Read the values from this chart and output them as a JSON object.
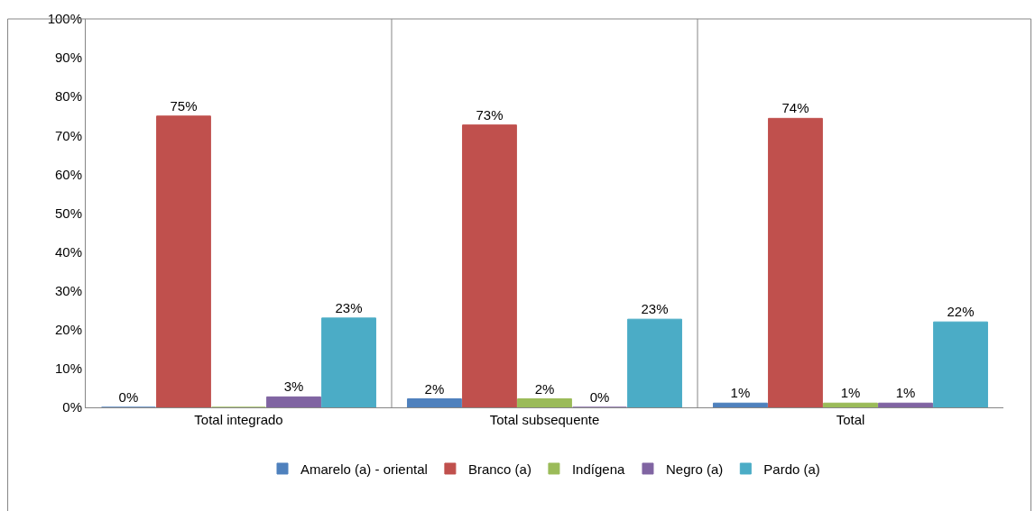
{
  "chart_data": {
    "type": "bar",
    "categories": [
      "Total integrado",
      "Total subsequente",
      "Total"
    ],
    "series": [
      {
        "name": "Amarelo (a) - oriental",
        "color": "#4f81bd",
        "values": [
          0,
          2.2,
          1.1
        ],
        "value_labels": [
          "0%",
          "2%",
          "1%"
        ]
      },
      {
        "name": "Branco (a)",
        "color": "#c0504d",
        "values": [
          75,
          72.7,
          74.4
        ],
        "value_labels": [
          "75%",
          "73%",
          "74%"
        ]
      },
      {
        "name": "Indígena",
        "color": "#9bbb59",
        "values": [
          0,
          2.2,
          1.1
        ],
        "value_labels": [
          null,
          "2%",
          "1%"
        ]
      },
      {
        "name": "Negro (a)",
        "color": "#8064a2",
        "values": [
          2.7,
          0,
          1.1
        ],
        "value_labels": [
          "3%",
          "0%",
          "1%"
        ]
      },
      {
        "name": "Pardo (a)",
        "color": "#4bacc6",
        "values": [
          23,
          22.7,
          22
        ],
        "value_labels": [
          "23%",
          "23%",
          "22%"
        ]
      }
    ],
    "ylim": [
      0,
      100
    ],
    "yticks": [
      {
        "value": 0,
        "label": "0%"
      },
      {
        "value": 10,
        "label": "10%"
      },
      {
        "value": 20,
        "label": "20%"
      },
      {
        "value": 30,
        "label": "30%"
      },
      {
        "value": 40,
        "label": "40%"
      },
      {
        "value": 50,
        "label": "50%"
      },
      {
        "value": 60,
        "label": "60%"
      },
      {
        "value": 70,
        "label": "70%"
      },
      {
        "value": 80,
        "label": "80%"
      },
      {
        "value": 90,
        "label": "90%"
      },
      {
        "value": 100,
        "label": "100%"
      }
    ],
    "grid": "x",
    "legend": "bottom"
  }
}
